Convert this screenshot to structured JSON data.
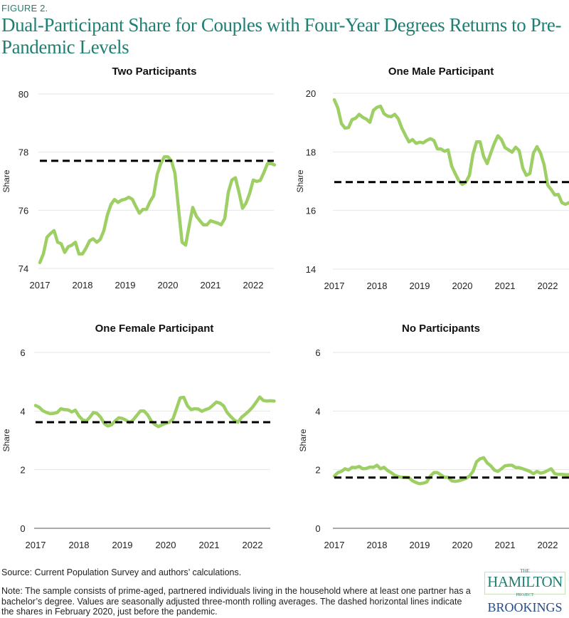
{
  "figure_label": "FIGURE 2.",
  "title": "Dual-Participant Share for Couples with Four-Year Degrees Returns to Pre-Pandemic Levels",
  "source": "Source: Current Population Survey and authors’ calculations.",
  "note": "Note: The sample consists of prime-aged, partnered individuals living in the household where at least one partner has a bachelor’s degree. Values are seasonally adjusted three-month rolling averages. The dashed horizontal lines indicate the shares in February 2020, just before the pandemic.",
  "logo": {
    "the": "THE",
    "hamilton": "HAMILTON",
    "project": "PROJECT",
    "brookings": "BROOKINGS"
  },
  "colors": {
    "line": "#9dcf65",
    "reference": "#000000",
    "title": "#1f7f73",
    "grid": "#e6e6e6"
  },
  "chart_data": [
    {
      "type": "line",
      "title": "Two Participants",
      "ylabel": "Share",
      "ylim": [
        74,
        80
      ],
      "yticks": [
        "74",
        "76",
        "78",
        "80"
      ],
      "xticks": [
        "2017",
        "2018",
        "2019",
        "2020",
        "2021",
        "2022"
      ],
      "grid": true,
      "reference_value": 77.7,
      "values": [
        74.2,
        74.5,
        75.07,
        75.2,
        75.3,
        74.9,
        74.85,
        74.55,
        74.75,
        74.8,
        74.9,
        74.5,
        74.5,
        74.7,
        74.95,
        75.02,
        74.9,
        75.0,
        75.3,
        75.84,
        76.2,
        76.37,
        76.27,
        76.35,
        76.38,
        76.45,
        76.38,
        76.13,
        75.9,
        76.03,
        76.03,
        76.3,
        76.5,
        77.23,
        77.6,
        77.84,
        77.84,
        77.7,
        77.27,
        76.05,
        74.9,
        74.8,
        75.47,
        76.1,
        75.8,
        75.64,
        75.5,
        75.5,
        75.64,
        75.6,
        75.56,
        75.5,
        75.72,
        76.62,
        77.04,
        77.12,
        76.62,
        76.07,
        76.25,
        76.58,
        77.04,
        76.99,
        77.03,
        77.3,
        77.6,
        77.61,
        77.56
      ]
    },
    {
      "type": "line",
      "title": "One Male Participant",
      "ylabel": "Share",
      "ylim": [
        14,
        20
      ],
      "yticks": [
        "14",
        "16",
        "18",
        "20"
      ],
      "xticks": [
        "2017",
        "2018",
        "2019",
        "2020",
        "2021",
        "2022"
      ],
      "grid": true,
      "reference_value": 16.97,
      "values": [
        19.78,
        19.5,
        18.97,
        18.81,
        18.83,
        19.1,
        19.15,
        19.28,
        19.18,
        19.12,
        19.01,
        19.42,
        19.52,
        19.56,
        19.3,
        19.22,
        19.2,
        19.28,
        19.13,
        18.81,
        18.57,
        18.34,
        18.42,
        18.29,
        18.33,
        18.31,
        18.39,
        18.45,
        18.39,
        18.1,
        18.1,
        18.02,
        18.07,
        17.52,
        17.26,
        17.02,
        16.89,
        16.97,
        17.2,
        17.92,
        18.34,
        18.34,
        17.84,
        17.6,
        17.96,
        18.29,
        18.55,
        18.42,
        18.15,
        18.07,
        17.99,
        18.16,
        18.04,
        17.45,
        17.2,
        17.26,
        17.96,
        18.18,
        17.96,
        17.56,
        16.87,
        16.71,
        16.53,
        16.55,
        16.27,
        16.21,
        16.27
      ]
    },
    {
      "type": "line",
      "title": "One Female Participant",
      "ylabel": "Share",
      "ylim": [
        0,
        6
      ],
      "yticks": [
        "0",
        "2",
        "4",
        "6"
      ],
      "xticks": [
        "2017",
        "2018",
        "2019",
        "2020",
        "2021",
        "2022"
      ],
      "grid": true,
      "reference_value": 3.62,
      "values": [
        4.19,
        4.13,
        4.01,
        3.95,
        3.91,
        3.92,
        3.95,
        4.08,
        4.05,
        4.04,
        3.97,
        4.03,
        3.83,
        3.7,
        3.66,
        3.79,
        3.95,
        3.92,
        3.79,
        3.57,
        3.49,
        3.53,
        3.66,
        3.77,
        3.75,
        3.69,
        3.61,
        3.7,
        3.85,
        4.0,
        4.0,
        3.87,
        3.66,
        3.54,
        3.47,
        3.53,
        3.58,
        3.62,
        3.73,
        4.09,
        4.45,
        4.47,
        4.18,
        4.05,
        4.08,
        4.07,
        3.99,
        4.05,
        4.09,
        4.19,
        4.31,
        4.27,
        4.18,
        3.95,
        3.81,
        3.69,
        3.62,
        3.79,
        3.89,
        4.0,
        4.13,
        4.3,
        4.48,
        4.36,
        4.34,
        4.35,
        4.34
      ]
    },
    {
      "type": "line",
      "title": "No Participants",
      "ylabel": "Share",
      "ylim": [
        0,
        6
      ],
      "yticks": [
        "0",
        "2",
        "4",
        "6"
      ],
      "xticks": [
        "2017",
        "2018",
        "2019",
        "2020",
        "2021",
        "2022"
      ],
      "grid": true,
      "reference_value": 1.73,
      "values": [
        1.78,
        1.9,
        1.94,
        2.03,
        1.99,
        2.08,
        2.07,
        2.11,
        2.03,
        2.04,
        2.09,
        2.08,
        2.15,
        2.03,
        2.08,
        1.97,
        1.9,
        1.81,
        1.76,
        1.74,
        1.74,
        1.73,
        1.62,
        1.56,
        1.52,
        1.54,
        1.58,
        1.78,
        1.9,
        1.9,
        1.82,
        1.74,
        1.74,
        1.62,
        1.6,
        1.62,
        1.66,
        1.7,
        1.78,
        1.94,
        2.27,
        2.37,
        2.41,
        2.23,
        2.13,
        1.99,
        1.94,
        2.03,
        2.13,
        2.15,
        2.15,
        2.07,
        2.07,
        2.03,
        1.99,
        1.94,
        1.86,
        1.94,
        1.88,
        1.91,
        1.97,
        2.03,
        1.86,
        1.84,
        1.84,
        1.83,
        1.83
      ]
    }
  ]
}
